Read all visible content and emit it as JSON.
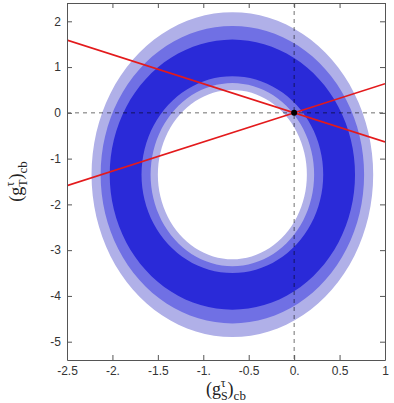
{
  "chart_data": {
    "type": "contour",
    "x_label": {
      "open": "(g",
      "sub": "S",
      "sup": "τ",
      "close": ")",
      "outer_sub": "cb"
    },
    "y_label": {
      "open": "(g",
      "sub": "T",
      "sup": "τ",
      "close": ")",
      "outer_sub": "cb"
    },
    "xlim": [
      -2.5,
      1
    ],
    "ylim": [
      -5.4,
      2.4
    ],
    "xticks": [
      -2.5,
      {
        "value": -2,
        "label": "-2."
      },
      -1.5,
      {
        "value": -1,
        "label": "-1."
      },
      -0.5,
      {
        "value": 0,
        "label": "0."
      },
      0.5,
      1
    ],
    "yticks": [
      -5,
      -4,
      -3,
      -2,
      -1,
      0,
      1,
      2
    ],
    "regions": [
      {
        "color": "#b0b0e8",
        "center": [
          -0.68,
          -1.35
        ],
        "outer": [
          1.55,
          3.55
        ],
        "inner": [
          0.82,
          1.85
        ]
      },
      {
        "color": "#7070e4",
        "center": [
          -0.68,
          -1.35
        ],
        "outer": [
          1.45,
          3.25
        ],
        "inner": [
          0.9,
          2.0
        ]
      },
      {
        "color": "#2a2ad8",
        "center": [
          -0.68,
          -1.35
        ],
        "outer": [
          1.35,
          2.95
        ],
        "inner": [
          1.0,
          2.15
        ]
      }
    ],
    "lines": [
      {
        "color": "#e31a1c",
        "x": [
          -2.5,
          1
        ],
        "y": [
          -1.59,
          0.635
        ]
      },
      {
        "color": "#e31a1c",
        "x": [
          -2.5,
          1
        ],
        "y": [
          1.59,
          -0.635
        ]
      }
    ],
    "points": {
      "color": "#000000",
      "marker": "circle",
      "x": [
        0
      ],
      "y": [
        0
      ]
    },
    "reference_lines": {
      "color": "#000000",
      "line_style": "dashed",
      "x": [
        0
      ],
      "y": [
        0
      ]
    }
  }
}
